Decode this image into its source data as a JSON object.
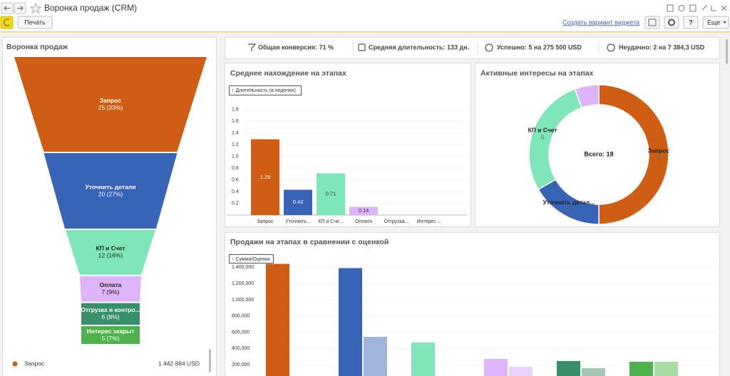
{
  "window": {
    "title": "Воронка продаж (CRM)"
  },
  "toolbar": {
    "print": "Печать",
    "create_link": "Создать вариант виджета",
    "help": "?",
    "more": "Еще"
  },
  "stats": [
    "Общая конверсия: 71 %",
    "Средняя длительность: 133 дн.",
    "Успешно: 5 на 275 500 USD",
    "Неудачно: 2 на 7 384,3 USD"
  ],
  "chart_data": [
    {
      "type": "funnel",
      "title": "Воронка продаж",
      "categories": [
        "Запрос",
        "Уточнить детали",
        "КП и Счет",
        "Оплата",
        "Отгрузка и контро...",
        "Интерес закрыт"
      ],
      "values": [
        25,
        20,
        12,
        7,
        6,
        5
      ],
      "value_labels": [
        "25 (33%)",
        "20 (27%)",
        "12 (16%)",
        "7 (9%)",
        "6 (8%)",
        "5 (7%)"
      ],
      "colors": [
        "#d05d14",
        "#3764b6",
        "#7ee6b8",
        "#dcb4f7",
        "#38906b",
        "#4db24b"
      ],
      "legend": {
        "name": "Запрос",
        "value": "1 442 884 USD"
      }
    },
    {
      "type": "bar",
      "title": "Среднее нахождение на этапах",
      "y_label": "↑ Длительность (в неделях)",
      "categories": [
        "Запрос",
        "Уточнить...",
        "КП и Сче...",
        "Оплата",
        "Отгрузка...",
        "Интерес ..."
      ],
      "values": [
        1.29,
        0.43,
        0.71,
        0.14,
        null,
        null
      ],
      "colors": [
        "#d05d14",
        "#3764b6",
        "#7ee6b8",
        "#dcb4f7",
        "#38906b",
        "#4db24b"
      ],
      "ylim": [
        0,
        2
      ],
      "yticks": [
        0.2,
        0.4,
        0.6,
        0.8,
        {
          "value": 1,
          "label": "1.0"
        },
        1.2,
        1.4,
        1.6,
        1.8
      ],
      "grid": true
    },
    {
      "type": "donut",
      "title": "Активные интересы на этапах",
      "center_label": "Всего: 18",
      "categories": [
        "Запрос",
        "Уточнить детал...",
        "КП и Счет",
        null
      ],
      "values": [
        9,
        3,
        5,
        1
      ],
      "colors": [
        "#d05d14",
        "#3764b6",
        "#7ee6b8",
        "#dcb4f7"
      ]
    },
    {
      "type": "grouped-bar",
      "title": "Продажи на этапах в сравнении с оценкой",
      "y_label": "↑ Сумма/Оценка",
      "series": [
        {
          "values": [
            1442884,
            1390000,
            474000,
            272000,
            246000,
            237000
          ],
          "colors": [
            "#d05d14",
            "#3764b6",
            "#7ee6b8",
            "#dcb4f7",
            "#38906b",
            "#4db24b"
          ]
        },
        {
          "values": [
            null,
            544000,
            null,
            175000,
            158000,
            237000
          ],
          "colors": [
            null,
            "#9fb5dd",
            null,
            "#ead3fb",
            "#a3c8b6",
            "#a9dca3"
          ]
        }
      ],
      "ylim": [
        0,
        1500000
      ],
      "yticks": [
        {
          "value": 200000,
          "label": "200,000"
        },
        {
          "value": 400000,
          "label": "400,000"
        },
        {
          "value": 600000,
          "label": "600,000"
        },
        {
          "value": 800000,
          "label": "800,000"
        },
        {
          "value": 1000000,
          "label": "1,000,000"
        },
        {
          "value": 1200000,
          "label": "1,200,000"
        },
        {
          "value": 1400000,
          "label": "1,400,000"
        }
      ],
      "grid": true
    }
  ]
}
